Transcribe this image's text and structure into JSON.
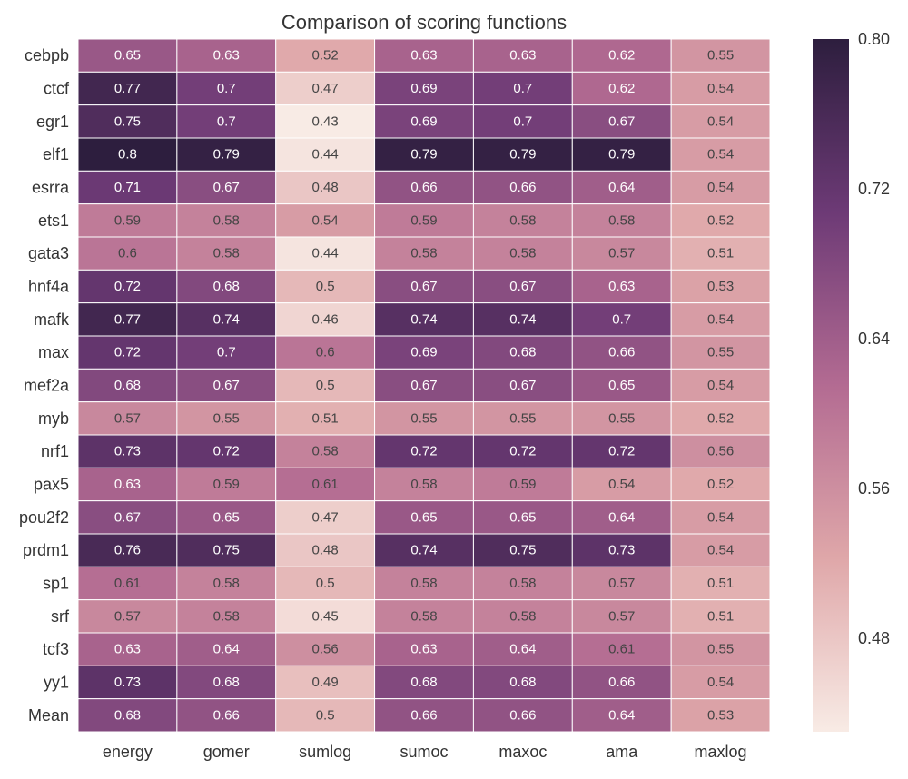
{
  "chart_data": {
    "type": "heatmap",
    "title": "Comparison of scoring functions",
    "xlabel": "",
    "ylabel": "",
    "columns": [
      "energy",
      "gomer",
      "sumlog",
      "sumoc",
      "maxoc",
      "ama",
      "maxlog"
    ],
    "rows": [
      "cebpb",
      "ctcf",
      "egr1",
      "elf1",
      "esrra",
      "ets1",
      "gata3",
      "hnf4a",
      "mafk",
      "max",
      "mef2a",
      "myb",
      "nrf1",
      "pax5",
      "pou2f2",
      "prdm1",
      "sp1",
      "srf",
      "tcf3",
      "yy1",
      "Mean"
    ],
    "values": [
      [
        0.65,
        0.63,
        0.52,
        0.63,
        0.63,
        0.62,
        0.55
      ],
      [
        0.77,
        0.7,
        0.47,
        0.69,
        0.7,
        0.62,
        0.54
      ],
      [
        0.75,
        0.7,
        0.43,
        0.69,
        0.7,
        0.67,
        0.54
      ],
      [
        0.8,
        0.79,
        0.44,
        0.79,
        0.79,
        0.79,
        0.54
      ],
      [
        0.71,
        0.67,
        0.48,
        0.66,
        0.66,
        0.64,
        0.54
      ],
      [
        0.59,
        0.58,
        0.54,
        0.59,
        0.58,
        0.58,
        0.52
      ],
      [
        0.6,
        0.58,
        0.44,
        0.58,
        0.58,
        0.57,
        0.51
      ],
      [
        0.72,
        0.68,
        0.5,
        0.67,
        0.67,
        0.63,
        0.53
      ],
      [
        0.77,
        0.74,
        0.46,
        0.74,
        0.74,
        0.7,
        0.54
      ],
      [
        0.72,
        0.7,
        0.6,
        0.69,
        0.68,
        0.66,
        0.55
      ],
      [
        0.68,
        0.67,
        0.5,
        0.67,
        0.67,
        0.65,
        0.54
      ],
      [
        0.57,
        0.55,
        0.51,
        0.55,
        0.55,
        0.55,
        0.52
      ],
      [
        0.73,
        0.72,
        0.58,
        0.72,
        0.72,
        0.72,
        0.56
      ],
      [
        0.63,
        0.59,
        0.61,
        0.58,
        0.59,
        0.54,
        0.52
      ],
      [
        0.67,
        0.65,
        0.47,
        0.65,
        0.65,
        0.64,
        0.54
      ],
      [
        0.76,
        0.75,
        0.48,
        0.74,
        0.75,
        0.73,
        0.54
      ],
      [
        0.61,
        0.58,
        0.5,
        0.58,
        0.58,
        0.57,
        0.51
      ],
      [
        0.57,
        0.58,
        0.45,
        0.58,
        0.58,
        0.57,
        0.51
      ],
      [
        0.63,
        0.64,
        0.56,
        0.63,
        0.64,
        0.61,
        0.55
      ],
      [
        0.73,
        0.68,
        0.49,
        0.68,
        0.68,
        0.66,
        0.54
      ],
      [
        0.68,
        0.66,
        0.5,
        0.66,
        0.66,
        0.64,
        0.53
      ]
    ],
    "colorbar": {
      "min": 0.43,
      "max": 0.8,
      "ticks": [
        0.8,
        0.72,
        0.64,
        0.56,
        0.48
      ],
      "tick_labels": [
        "0.80",
        "0.72",
        "0.64",
        "0.56",
        "0.48"
      ],
      "colors": [
        "#f8ebe5",
        "#dfa7a9",
        "#b36b92",
        "#6d3a76",
        "#2d1e3e"
      ]
    },
    "annotate": true,
    "grid": false,
    "legend": "colorbar-right"
  }
}
